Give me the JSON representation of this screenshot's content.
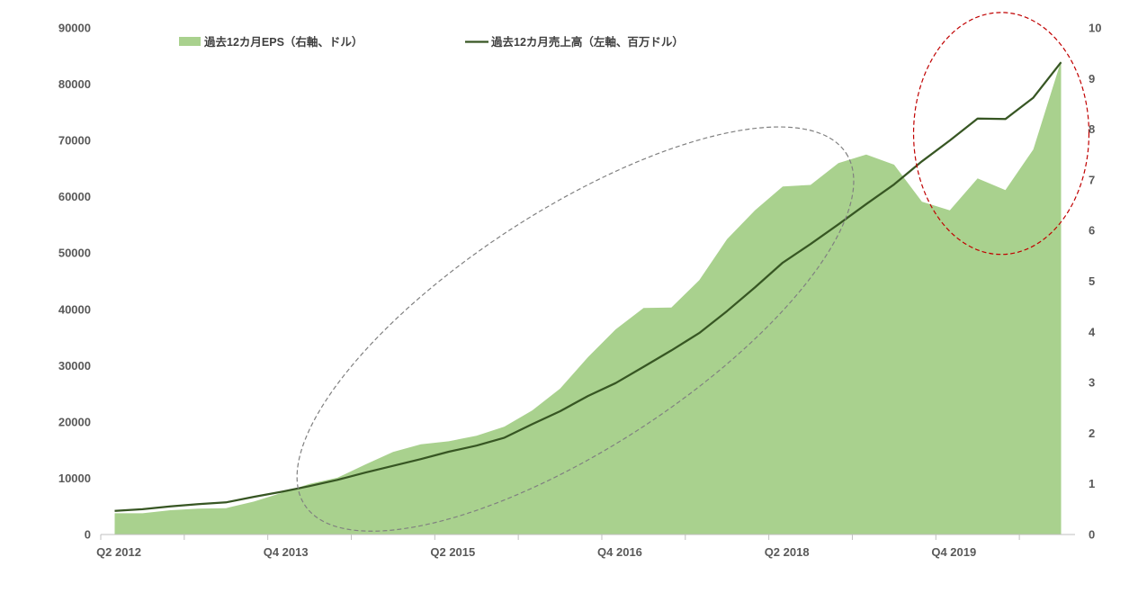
{
  "chart_data": {
    "type": "area",
    "title": "",
    "xlabel": "",
    "ylabel": "",
    "x_tick_labels": [
      "Q2 2012",
      "Q4 2013",
      "Q2 2015",
      "Q4 2016",
      "Q2 2018",
      "Q4 2019"
    ],
    "y_left": {
      "lim": [
        0,
        90000
      ],
      "ticks": [
        "0",
        "10000",
        "20000",
        "30000",
        "40000",
        "50000",
        "60000",
        "70000",
        "80000",
        "90000"
      ]
    },
    "y_right": {
      "lim": [
        0,
        10
      ],
      "ticks": [
        "0",
        "1",
        "2",
        "3",
        "4",
        "5",
        "6",
        "7",
        "8",
        "9",
        "10"
      ]
    },
    "x": [
      "Q2 2012",
      "Q3 2012",
      "Q4 2012",
      "Q1 2013",
      "Q2 2013",
      "Q3 2013",
      "Q4 2013",
      "Q1 2014",
      "Q2 2014",
      "Q3 2014",
      "Q4 2014",
      "Q1 2015",
      "Q2 2015",
      "Q3 2015",
      "Q4 2015",
      "Q1 2016",
      "Q2 2016",
      "Q3 2016",
      "Q4 2016",
      "Q1 2017",
      "Q2 2017",
      "Q3 2017",
      "Q4 2017",
      "Q1 2018",
      "Q2 2018",
      "Q3 2018",
      "Q4 2018",
      "Q1 2019",
      "Q2 2019",
      "Q3 2019",
      "Q4 2019",
      "Q1 2020",
      "Q2 2020",
      "Q3 2020",
      "Q4 2020"
    ],
    "series": [
      {
        "name": "過去12カ月EPS（右軸、ドル）",
        "type": "area",
        "axis": "right",
        "color": "#a9d18e",
        "values": [
          0.42,
          0.42,
          0.48,
          0.51,
          0.52,
          0.65,
          0.82,
          1.0,
          1.12,
          1.38,
          1.63,
          1.78,
          1.84,
          1.95,
          2.13,
          2.45,
          2.88,
          3.5,
          4.05,
          4.47,
          4.48,
          5.02,
          5.83,
          6.4,
          6.87,
          6.9,
          7.33,
          7.5,
          7.3,
          6.57,
          6.4,
          7.03,
          6.8,
          7.6,
          9.35
        ]
      },
      {
        "name": "過去12カ月売上高（左軸、百万ドル）",
        "type": "line",
        "axis": "left",
        "color": "#375623",
        "values": [
          4200,
          4500,
          5000,
          5400,
          5700,
          6700,
          7600,
          8600,
          9700,
          11000,
          12200,
          13400,
          14700,
          15800,
          17200,
          19600,
          21900,
          24600,
          26900,
          29800,
          32700,
          35800,
          39700,
          43900,
          48300,
          51600,
          55100,
          58700,
          62200,
          66300,
          70000,
          73900,
          73800,
          77600,
          83900
        ]
      }
    ],
    "legend_position": "top",
    "grid": false,
    "annotations": [
      {
        "type": "ellipse",
        "style": "dashed",
        "color": "#808080",
        "span": [
          "Q4 2013",
          "Q1 2019"
        ]
      },
      {
        "type": "ellipse",
        "style": "dashed",
        "color": "#c00000",
        "span": [
          "Q3 2019",
          "Q4 2020"
        ]
      }
    ]
  }
}
